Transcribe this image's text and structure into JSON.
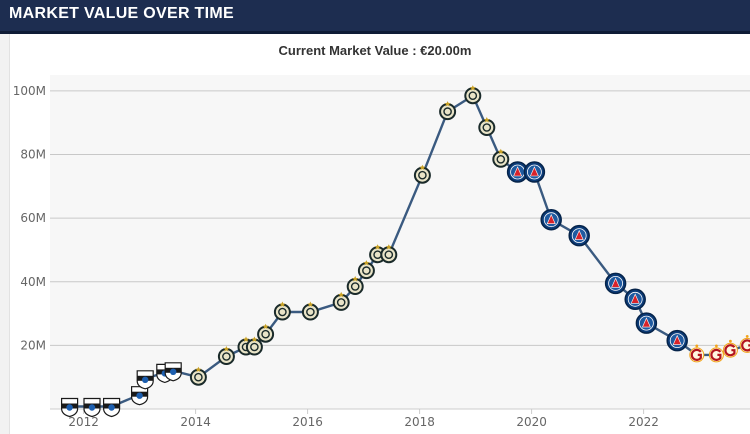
{
  "header": {
    "title": "MARKET VALUE OVER TIME"
  },
  "chart_data": {
    "type": "line",
    "title": "Current Market Value : €20.00m",
    "xlabel": "",
    "ylabel": "",
    "ylim": [
      0,
      105
    ],
    "xlim": [
      2011.4,
      2023.9
    ],
    "y_unit": "M",
    "y_ticks": [
      20,
      40,
      60,
      80,
      100
    ],
    "y_tick_labels": [
      "20M",
      "40M",
      "60M",
      "80M",
      "100M"
    ],
    "x_ticks": [
      2012,
      2014,
      2016,
      2018,
      2020,
      2022
    ],
    "x_tick_labels": [
      "2012",
      "2014",
      "2016",
      "2018",
      "2020",
      "2022"
    ],
    "grid": true,
    "legend": "none",
    "line_color": "#3a5a80",
    "plot_background": "#f7f7f7",
    "club_colors": {
      "sampdoria": "#1d5fb0",
      "inter": "#1a2a5a",
      "psg": "#0b3b78",
      "galatasaray": "#f2a41a"
    },
    "points": [
      {
        "x": 2011.75,
        "y": 0.8,
        "club": "sampdoria"
      },
      {
        "x": 2012.15,
        "y": 0.8,
        "club": "sampdoria"
      },
      {
        "x": 2012.5,
        "y": 0.8,
        "club": "sampdoria"
      },
      {
        "x": 2013.0,
        "y": 4.5,
        "club": "sampdoria"
      },
      {
        "x": 2013.1,
        "y": 9.5,
        "club": "sampdoria"
      },
      {
        "x": 2013.45,
        "y": 11.5,
        "club": "sampdoria"
      },
      {
        "x": 2013.6,
        "y": 12.0,
        "club": "sampdoria"
      },
      {
        "x": 2014.05,
        "y": 10.0,
        "club": "inter"
      },
      {
        "x": 2014.55,
        "y": 16.5,
        "club": "inter"
      },
      {
        "x": 2014.9,
        "y": 19.5,
        "club": "inter"
      },
      {
        "x": 2015.05,
        "y": 19.5,
        "club": "inter"
      },
      {
        "x": 2015.25,
        "y": 23.5,
        "club": "inter"
      },
      {
        "x": 2015.55,
        "y": 30.5,
        "club": "inter"
      },
      {
        "x": 2016.05,
        "y": 30.5,
        "club": "inter"
      },
      {
        "x": 2016.6,
        "y": 33.5,
        "club": "inter"
      },
      {
        "x": 2016.85,
        "y": 38.5,
        "club": "inter"
      },
      {
        "x": 2017.05,
        "y": 43.5,
        "club": "inter"
      },
      {
        "x": 2017.25,
        "y": 48.5,
        "club": "inter"
      },
      {
        "x": 2017.45,
        "y": 48.5,
        "club": "inter"
      },
      {
        "x": 2018.05,
        "y": 73.5,
        "club": "inter"
      },
      {
        "x": 2018.5,
        "y": 93.5,
        "club": "inter"
      },
      {
        "x": 2018.95,
        "y": 98.5,
        "club": "inter"
      },
      {
        "x": 2019.2,
        "y": 88.5,
        "club": "inter"
      },
      {
        "x": 2019.45,
        "y": 78.5,
        "club": "inter"
      },
      {
        "x": 2019.75,
        "y": 74.5,
        "club": "psg"
      },
      {
        "x": 2020.05,
        "y": 74.5,
        "club": "psg"
      },
      {
        "x": 2020.35,
        "y": 59.5,
        "club": "psg"
      },
      {
        "x": 2020.85,
        "y": 54.5,
        "club": "psg"
      },
      {
        "x": 2021.5,
        "y": 39.5,
        "club": "psg"
      },
      {
        "x": 2021.85,
        "y": 34.5,
        "club": "psg"
      },
      {
        "x": 2022.05,
        "y": 27.0,
        "club": "psg"
      },
      {
        "x": 2022.6,
        "y": 21.5,
        "club": "psg"
      },
      {
        "x": 2022.95,
        "y": 17.0,
        "club": "galatasaray"
      },
      {
        "x": 2023.3,
        "y": 17.0,
        "club": "galatasaray"
      },
      {
        "x": 2023.55,
        "y": 18.5,
        "club": "galatasaray"
      },
      {
        "x": 2023.85,
        "y": 20.0,
        "club": "galatasaray"
      }
    ]
  }
}
